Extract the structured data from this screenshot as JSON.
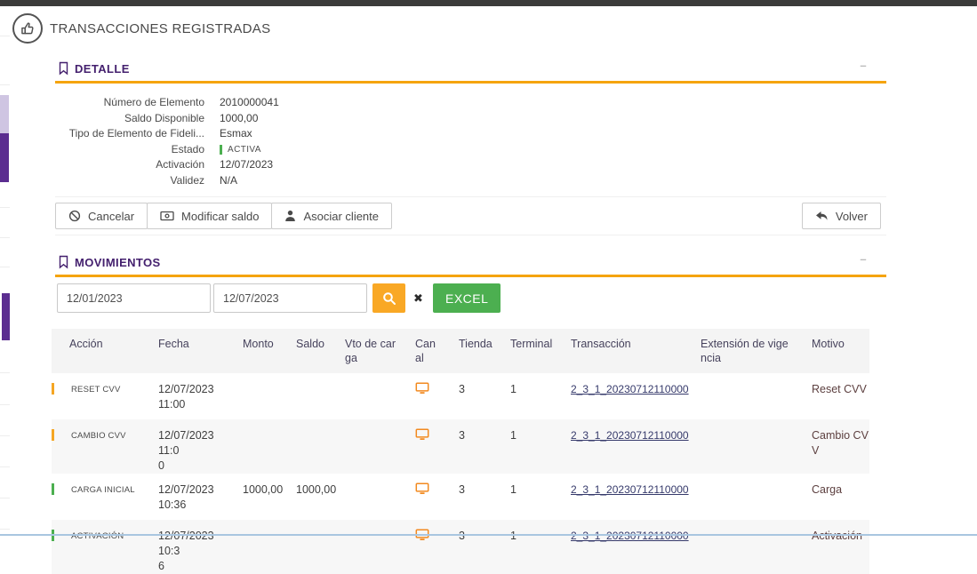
{
  "header": {
    "title": "TRANSACCIONES REGISTRADAS",
    "icon": "thumbs-up-icon"
  },
  "detalle": {
    "title": "DETALLE",
    "collapse_glyph": "–",
    "fields": [
      {
        "label": "Número de Elemento",
        "value": "2010000041"
      },
      {
        "label": "Saldo Disponible",
        "value": "1000,00"
      },
      {
        "label": "Tipo de Elemento de Fideli...",
        "value": "Esmax"
      },
      {
        "label": "Estado",
        "value": "ACTIVA",
        "status_color": "#4caf50"
      },
      {
        "label": "Activación",
        "value": "12/07/2023"
      },
      {
        "label": "Validez",
        "value": "N/A"
      }
    ],
    "actions": [
      {
        "label": "Cancelar",
        "icon": "ban-icon"
      },
      {
        "label": "Modificar saldo",
        "icon": "banknote-icon"
      },
      {
        "label": "Asociar cliente",
        "icon": "person-icon"
      }
    ],
    "back_label": "Volver"
  },
  "movimientos": {
    "title": "MOVIMIENTOS",
    "collapse_glyph": "–",
    "date_from": "12/01/2023",
    "date_to": "12/07/2023",
    "clear_glyph": "✖",
    "excel_label": "EXCEL",
    "table": {
      "headers": [
        "Acción",
        "Fecha",
        "Monto",
        "Saldo",
        "Vto de carga",
        "Canal",
        "Tienda",
        "Terminal",
        "Transacción",
        "Extensión de vigencia",
        "Motivo"
      ],
      "rows": [
        {
          "accion": "RESET CVV",
          "bar_color": "#f5a623",
          "fecha": "12/07/2023\n11:00",
          "monto": "",
          "saldo": "",
          "vto_de_carga": "",
          "canal": "monitor-icon",
          "tienda": "3",
          "terminal": "1",
          "transaccion": "2_3_1_20230712110000",
          "extension": "",
          "motivo": "Reset CVV"
        },
        {
          "accion": "CAMBIO CVV",
          "bar_color": "#f5a623",
          "fecha": "12/07/2023 11:0\n0",
          "monto": "",
          "saldo": "",
          "vto_de_carga": "",
          "canal": "monitor-icon",
          "tienda": "3",
          "terminal": "1",
          "transaccion": "2_3_1_20230712110000",
          "extension": "",
          "motivo": "Cambio CV\nV"
        },
        {
          "accion": "CARGA INICIAL",
          "bar_color": "#4caf50",
          "fecha": "12/07/2023\n10:36",
          "monto": "1000,00",
          "saldo": "1000,00",
          "vto_de_carga": "",
          "canal": "monitor-icon",
          "tienda": "3",
          "terminal": "1",
          "transaccion": "2_3_1_20230712110000",
          "extension": "",
          "motivo": "Carga"
        },
        {
          "accion": "ACTIVACIÓN",
          "bar_color": "#4caf50",
          "fecha": "12/07/2023 10:3\n6",
          "monto": "",
          "saldo": "",
          "vto_de_carga": "",
          "canal": "monitor-icon",
          "tienda": "3",
          "terminal": "1",
          "transaccion": "2_3_1_20230712110000",
          "extension": "",
          "motivo": "Activación"
        }
      ]
    }
  },
  "colors": {
    "section_title": "#44206e",
    "accent_rule": "#f5a40f",
    "search_button": "#f9a825",
    "excel_button": "#4caf50",
    "link": "#363a6b",
    "motivo_text": "#5d4040",
    "canal_icon": "#f28a20",
    "sidebar_purple": "#5b2d90",
    "sidebar_lavender": "#cfc5e2",
    "top_bar": "#3b3b3a"
  }
}
